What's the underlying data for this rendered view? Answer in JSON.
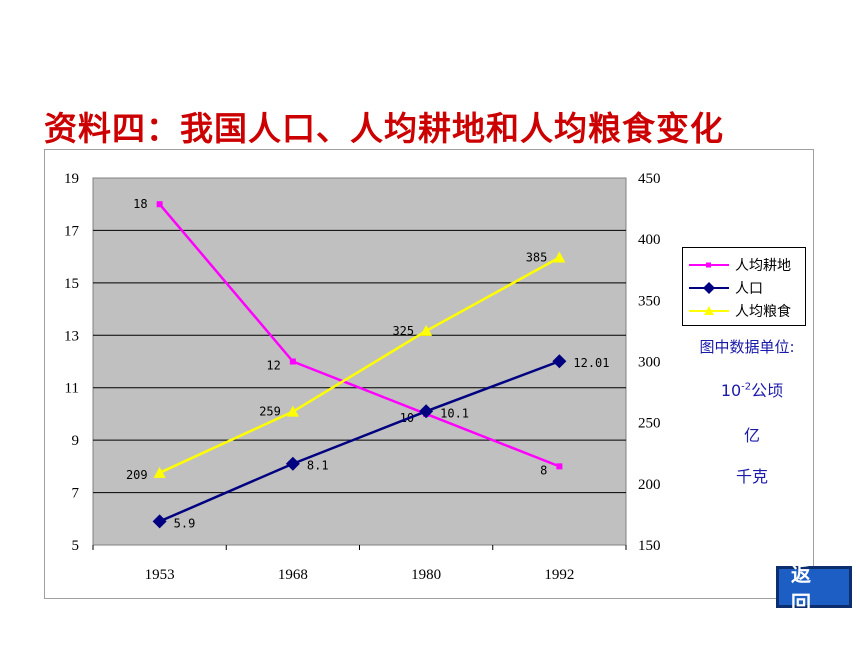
{
  "title": "资料四：我国人口、人均耕地和人均粮食变化",
  "unit_note": {
    "title": "图中数据单位:",
    "area_base": "10",
    "area_exp": "-2",
    "area_unit": "公顷",
    "population_unit": "亿",
    "grain_unit": "千克"
  },
  "back_button": "返 回",
  "colors": {
    "plot_bg": "#c0c0c0",
    "farmland": "#ff00ff",
    "population": "#000080",
    "grain": "#ffff00",
    "title": "#cc0000",
    "note": "#1a1aaa"
  },
  "chart_data": {
    "type": "line",
    "categories": [
      "1953",
      "1968",
      "1980",
      "1992"
    ],
    "left_axis": {
      "ylim": [
        5,
        19
      ],
      "ticks": [
        "5",
        "7",
        "9",
        "11",
        "13",
        "15",
        "17",
        "19"
      ]
    },
    "right_axis": {
      "ylim": [
        150,
        450
      ],
      "ticks": [
        "150",
        "200",
        "250",
        "300",
        "350",
        "400",
        "450"
      ]
    },
    "legend_position": "right",
    "grid": true,
    "series": [
      {
        "name": "人均耕地",
        "axis": "left",
        "marker": "square",
        "color": "#ff00ff",
        "values": [
          18,
          12,
          10,
          8
        ],
        "labels": [
          "18",
          "12",
          "10",
          "8"
        ]
      },
      {
        "name": "人口",
        "axis": "left",
        "marker": "diamond",
        "color": "#000080",
        "values": [
          5.9,
          8.1,
          10.1,
          12.01
        ],
        "labels": [
          "5.9",
          "8.1",
          "10.1",
          "12.01"
        ]
      },
      {
        "name": "人均粮食",
        "axis": "right",
        "marker": "triangle",
        "color": "#ffff00",
        "values": [
          209,
          259,
          325,
          385
        ],
        "labels": [
          "209",
          "259",
          "325",
          "385"
        ]
      }
    ]
  }
}
